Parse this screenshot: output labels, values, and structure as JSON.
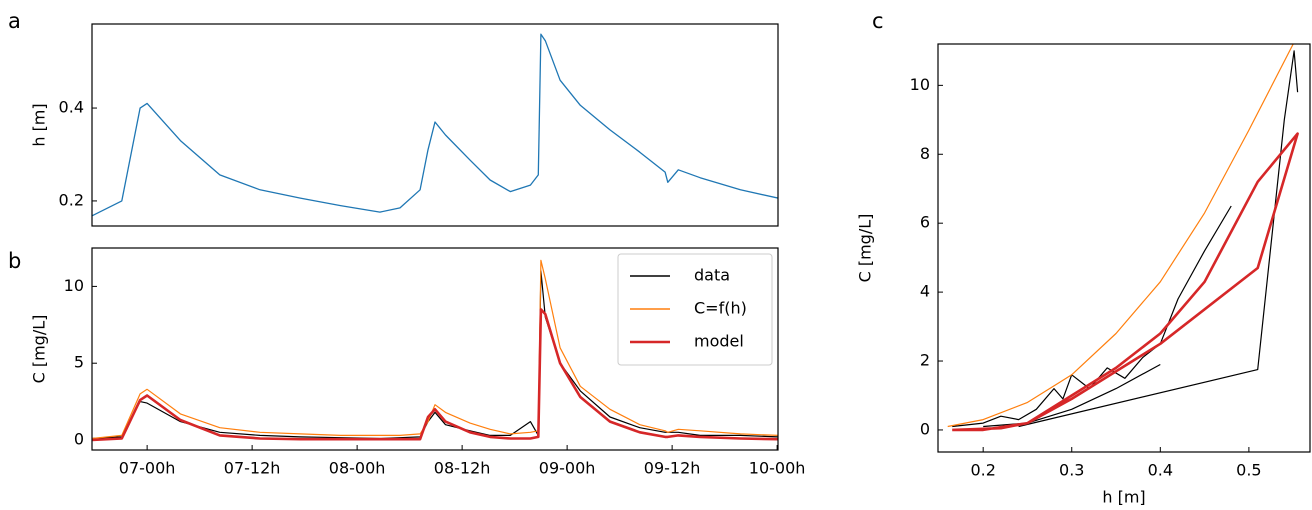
{
  "chart_data": [
    {
      "type": "line",
      "panel_label": "a",
      "ylabel": "h [m]",
      "color": "#1f77b4",
      "x": [
        -6.3,
        -2.9,
        -0.8,
        0,
        3.8,
        8.3,
        12.9,
        17.5,
        22.1,
        26.6,
        28.9,
        31.2,
        32.1,
        32.9,
        34.1,
        36.9,
        39.2,
        41.5,
        43.8,
        44.7,
        45.0,
        45.5,
        47.2,
        49.5,
        52.9,
        56.3,
        59.2,
        59.5,
        60.7,
        63.2,
        67.8,
        72.1
      ],
      "values": [
        0.168,
        0.2,
        0.4,
        0.41,
        0.33,
        0.256,
        0.224,
        0.206,
        0.19,
        0.176,
        0.185,
        0.224,
        0.31,
        0.37,
        0.342,
        0.288,
        0.245,
        0.22,
        0.234,
        0.256,
        0.559,
        0.545,
        0.46,
        0.406,
        0.353,
        0.305,
        0.262,
        0.24,
        0.267,
        0.25,
        0.224,
        0.206
      ],
      "xlim": [
        -6.3,
        72.1
      ],
      "ylim": [
        0.146,
        0.581
      ],
      "yticks": [
        0.2,
        0.4
      ]
    },
    {
      "type": "line",
      "panel_label": "b",
      "ylabel": "C [mg/L]",
      "legend": "upper right",
      "x": [
        -6.3,
        -2.9,
        -0.8,
        0,
        3.8,
        8.3,
        12.9,
        17.5,
        22.1,
        26.6,
        28.9,
        31.2,
        32.1,
        32.9,
        34.1,
        36.9,
        39.2,
        41.5,
        43.8,
        44.7,
        45.0,
        45.5,
        47.2,
        49.5,
        52.9,
        56.3,
        59.2,
        59.5,
        60.7,
        63.2,
        67.8,
        72.1
      ],
      "series": [
        {
          "name": "data",
          "color": "#000000",
          "values": [
            0.1,
            0.2,
            2.5,
            2.4,
            1.2,
            0.5,
            0.3,
            0.2,
            0.15,
            0.1,
            0.15,
            0.2,
            1.2,
            1.8,
            1.0,
            0.6,
            0.3,
            0.3,
            1.2,
            0.3,
            11,
            8,
            5,
            3.2,
            1.5,
            0.8,
            0.5,
            0.5,
            0.5,
            0.3,
            0.3,
            0.2
          ]
        },
        {
          "name": "C=f(h)",
          "color": "#ff7f0e",
          "values": [
            0.1,
            0.3,
            3.0,
            3.3,
            1.7,
            0.8,
            0.5,
            0.4,
            0.3,
            0.3,
            0.3,
            0.4,
            1.2,
            2.3,
            1.8,
            1.1,
            0.7,
            0.4,
            0.5,
            0.6,
            11.7,
            10.5,
            6,
            3.5,
            2.0,
            1.0,
            0.6,
            0.5,
            0.7,
            0.6,
            0.4,
            0.3
          ]
        },
        {
          "name": "model",
          "color": "#d62728",
          "values": [
            0,
            0.1,
            2.6,
            2.9,
            1.3,
            0.3,
            0.1,
            0.05,
            0.05,
            0.05,
            0.05,
            0.05,
            1.5,
            2.0,
            1.2,
            0.5,
            0.2,
            0.1,
            0.1,
            0.2,
            8.5,
            8.2,
            5,
            2.8,
            1.2,
            0.5,
            0.2,
            0.2,
            0.3,
            0.2,
            0.1,
            0.05
          ]
        }
      ],
      "xlim": [
        -6.3,
        72.1
      ],
      "ylim": [
        -0.65,
        12.5
      ],
      "yticks": [
        0,
        5,
        10
      ],
      "xticks": [
        {
          "value": 0,
          "label": "07-00h"
        },
        {
          "value": 12,
          "label": "07-12h"
        },
        {
          "value": 24,
          "label": "08-00h"
        },
        {
          "value": 36,
          "label": "08-12h"
        },
        {
          "value": 48,
          "label": "09-00h"
        },
        {
          "value": 60,
          "label": "09-12h"
        },
        {
          "value": 72,
          "label": "10-00h"
        }
      ]
    },
    {
      "type": "line",
      "panel_label": "c",
      "xlabel": "h [m]",
      "ylabel": "C [mg/L]",
      "series": [
        {
          "name": "data",
          "color": "#000000",
          "x": [
            0.165,
            0.2,
            0.22,
            0.24,
            0.26,
            0.28,
            0.29,
            0.3,
            0.32,
            0.34,
            0.36,
            0.38,
            0.4,
            0.42,
            0.45,
            0.48,
            null,
            0.4,
            0.35,
            0.3,
            0.25,
            0.2,
            null,
            0.24,
            0.51,
            0.54,
            0.551,
            0.555
          ],
          "values": [
            0.1,
            0.2,
            0.4,
            0.3,
            0.6,
            1.2,
            0.9,
            1.6,
            1.2,
            1.8,
            1.5,
            2.1,
            2.5,
            3.8,
            5.2,
            6.5,
            null,
            1.9,
            1.2,
            0.6,
            0.2,
            0.1,
            null,
            0.1,
            1.75,
            9,
            11,
            9.8
          ]
        },
        {
          "name": "C=f(h)",
          "color": "#ff7f0e",
          "x": [
            0.16,
            0.2,
            0.25,
            0.3,
            0.35,
            0.4,
            0.45,
            0.5,
            0.55
          ],
          "values": [
            0.1,
            0.3,
            0.8,
            1.6,
            2.8,
            4.3,
            6.3,
            8.7,
            11.2
          ]
        },
        {
          "name": "model",
          "color": "#d62728",
          "x": [
            0.165,
            0.22,
            0.25,
            0.3,
            0.35,
            0.4,
            0.45,
            0.51,
            0.555,
            0.51,
            0.4,
            0.3,
            0.25,
            0.2,
            0.165
          ],
          "values": [
            0,
            0.05,
            0.2,
            1.0,
            1.8,
            2.8,
            4.3,
            7.2,
            8.6,
            4.7,
            2.5,
            0.9,
            0.2,
            0,
            0
          ]
        }
      ],
      "xlim": [
        0.149,
        0.569
      ],
      "ylim": [
        -0.64,
        11.2
      ],
      "xticks": [
        0.2,
        0.3,
        0.4,
        0.5
      ],
      "yticks": [
        0,
        2,
        4,
        6,
        8,
        10
      ]
    }
  ]
}
